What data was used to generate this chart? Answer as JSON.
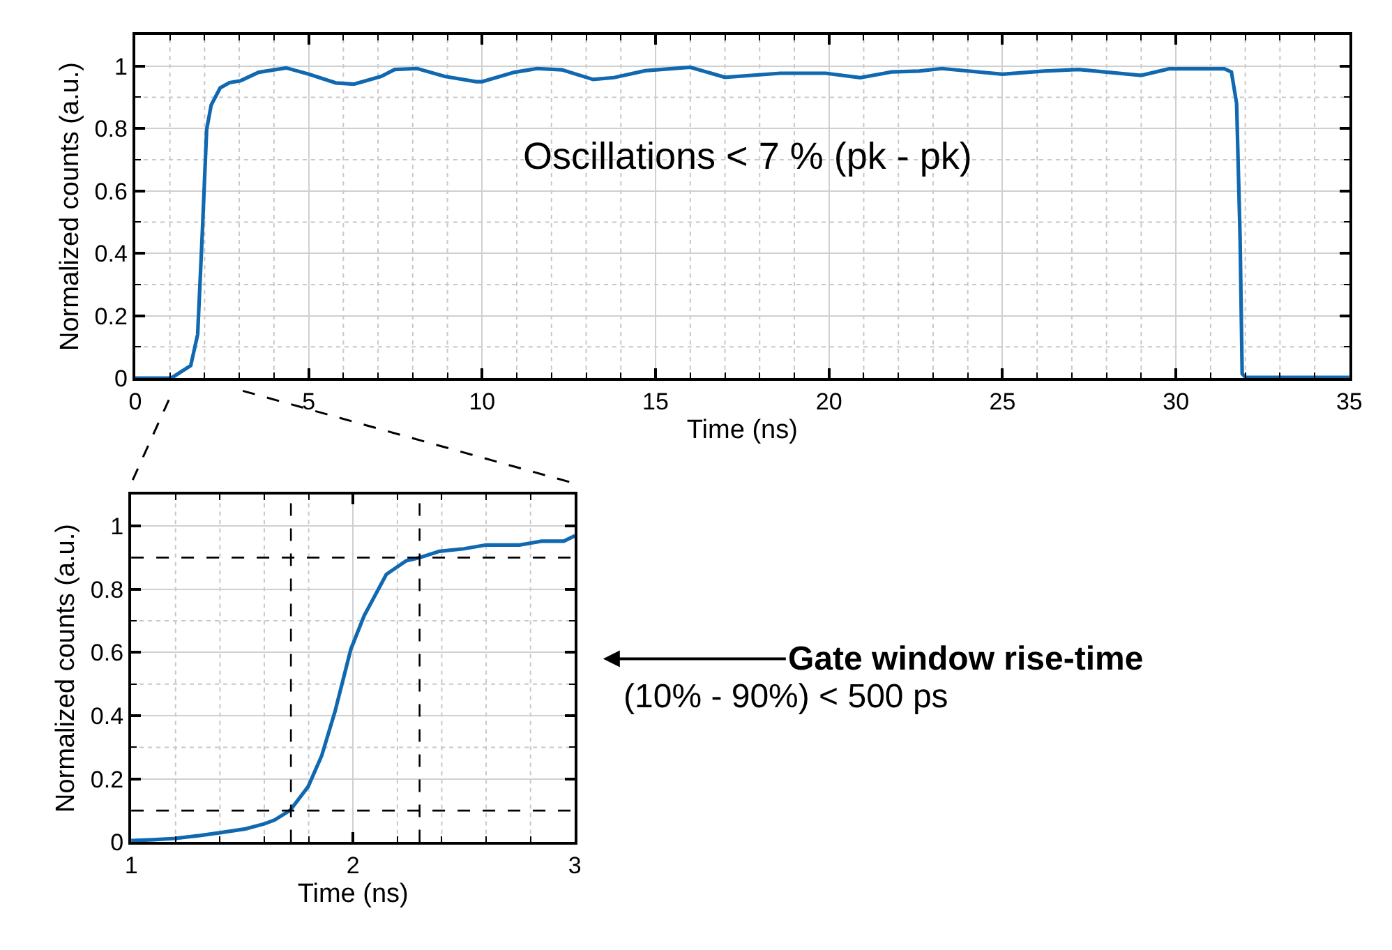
{
  "chart_data": [
    {
      "type": "line",
      "xlabel": "Time (ns)",
      "ylabel": "Normalized counts (a.u.)",
      "grid": true,
      "line_style": "solid",
      "xlim": [
        0,
        35
      ],
      "ylim": [
        0,
        1.1
      ],
      "xticks": [
        0,
        {
          "value": 1,
          "label": null
        },
        {
          "value": 2,
          "label": null
        },
        {
          "value": 3,
          "label": null
        },
        {
          "value": 4,
          "label": null
        },
        5,
        {
          "value": 6,
          "label": null
        },
        {
          "value": 7,
          "label": null
        },
        {
          "value": 8,
          "label": null
        },
        {
          "value": 9,
          "label": null
        },
        10,
        {
          "value": 11,
          "label": null
        },
        {
          "value": 12,
          "label": null
        },
        {
          "value": 13,
          "label": null
        },
        {
          "value": 14,
          "label": null
        },
        15,
        {
          "value": 16,
          "label": null
        },
        {
          "value": 17,
          "label": null
        },
        {
          "value": 18,
          "label": null
        },
        {
          "value": 19,
          "label": null
        },
        20,
        {
          "value": 21,
          "label": null
        },
        {
          "value": 22,
          "label": null
        },
        {
          "value": 23,
          "label": null
        },
        {
          "value": 24,
          "label": null
        },
        25,
        {
          "value": 26,
          "label": null
        },
        {
          "value": 27,
          "label": null
        },
        {
          "value": 28,
          "label": null
        },
        {
          "value": 29,
          "label": null
        },
        30,
        {
          "value": 31,
          "label": null
        },
        {
          "value": 32,
          "label": null
        },
        {
          "value": 33,
          "label": null
        },
        {
          "value": 34,
          "label": null
        },
        35
      ],
      "yticks": [
        0,
        {
          "value": 0.1,
          "label": null
        },
        0.2,
        {
          "value": 0.3,
          "label": null
        },
        0.4,
        {
          "value": 0.5,
          "label": null
        },
        0.6,
        {
          "value": 0.7,
          "label": null
        },
        0.8,
        {
          "value": 0.9,
          "label": null
        },
        1
      ],
      "annotations": [
        "Oscillations < 7 % (pk - pk)"
      ],
      "series": [
        {
          "color": "#1068b0",
          "x": [
            0,
            0.5,
            1.0,
            1.08,
            1.6,
            1.8,
            1.93,
            2.06,
            2.19,
            2.45,
            2.72,
            3.04,
            3.56,
            4.35,
            5.0,
            5.78,
            6.3,
            7.09,
            7.48,
            8.13,
            8.92,
            9.83,
            10.0,
            10.93,
            11.58,
            12.3,
            13.2,
            13.8,
            14.7,
            16.0,
            17.0,
            18.6,
            19.9,
            20.9,
            21.8,
            22.6,
            23.25,
            25.0,
            26.2,
            27.2,
            29.0,
            29.8,
            31.4,
            31.6,
            31.75,
            31.85,
            31.91,
            32.0,
            33.0,
            34.0,
            35.0
          ],
          "values": [
            0,
            0,
            0,
            0.003,
            0.04,
            0.14,
            0.455,
            0.797,
            0.875,
            0.93,
            0.947,
            0.953,
            0.98,
            0.994,
            0.974,
            0.946,
            0.942,
            0.967,
            0.989,
            0.992,
            0.967,
            0.95,
            0.95,
            0.98,
            0.992,
            0.988,
            0.957,
            0.963,
            0.985,
            0.996,
            0.964,
            0.977,
            0.977,
            0.963,
            0.981,
            0.984,
            0.992,
            0.974,
            0.984,
            0.989,
            0.97,
            0.991,
            0.991,
            0.981,
            0.88,
            0.45,
            0.014,
            0.003,
            0.002,
            0.002,
            0.002
          ]
        }
      ]
    },
    {
      "type": "line",
      "xlabel": "Time (ns)",
      "ylabel": "Normalized counts (a.u.)",
      "grid": true,
      "line_style": "solid",
      "xlim": [
        1,
        3
      ],
      "ylim": [
        0,
        1.1
      ],
      "xticks": [
        1,
        {
          "value": 1.2,
          "label": null
        },
        {
          "value": 1.4,
          "label": null
        },
        {
          "value": 1.6,
          "label": null
        },
        {
          "value": 1.8,
          "label": null
        },
        2,
        {
          "value": 2.2,
          "label": null
        },
        {
          "value": 2.4,
          "label": null
        },
        {
          "value": 2.6,
          "label": null
        },
        {
          "value": 2.8,
          "label": null
        },
        3
      ],
      "yticks": [
        0,
        0.2,
        {
          "value": 0.3,
          "label": null
        },
        0.4,
        {
          "value": 0.5,
          "label": null
        },
        0.6,
        {
          "value": 0.7,
          "label": null
        },
        0.8,
        1
      ],
      "ref_lines": [
        {
          "axis": "x",
          "value": 1.72,
          "color": "#000000",
          "line_style": "dashed"
        },
        {
          "axis": "x",
          "value": 2.3,
          "color": "#000000",
          "line_style": "dashed"
        },
        {
          "axis": "y",
          "value": 0.1,
          "color": "#000000",
          "line_style": "dashed"
        },
        {
          "axis": "y",
          "value": 0.9,
          "color": "#000000",
          "line_style": "dashed"
        }
      ],
      "annotations": [
        "Gate window rise-time",
        "(10% - 90%) < 500 ps"
      ],
      "series": [
        {
          "color": "#1068b0",
          "x": [
            1.0,
            1.1,
            1.2,
            1.31,
            1.4,
            1.515,
            1.6,
            1.646,
            1.717,
            1.798,
            1.859,
            1.919,
            1.99,
            2.05,
            2.15,
            2.24,
            2.3,
            2.39,
            2.5,
            2.6,
            2.75,
            2.85,
            2.95,
            3.0
          ],
          "values": [
            0.005,
            0.008,
            0.012,
            0.021,
            0.03,
            0.042,
            0.058,
            0.07,
            0.101,
            0.176,
            0.274,
            0.414,
            0.61,
            0.716,
            0.847,
            0.89,
            0.9,
            0.92,
            0.928,
            0.94,
            0.94,
            0.952,
            0.952,
            0.969
          ]
        }
      ]
    }
  ]
}
